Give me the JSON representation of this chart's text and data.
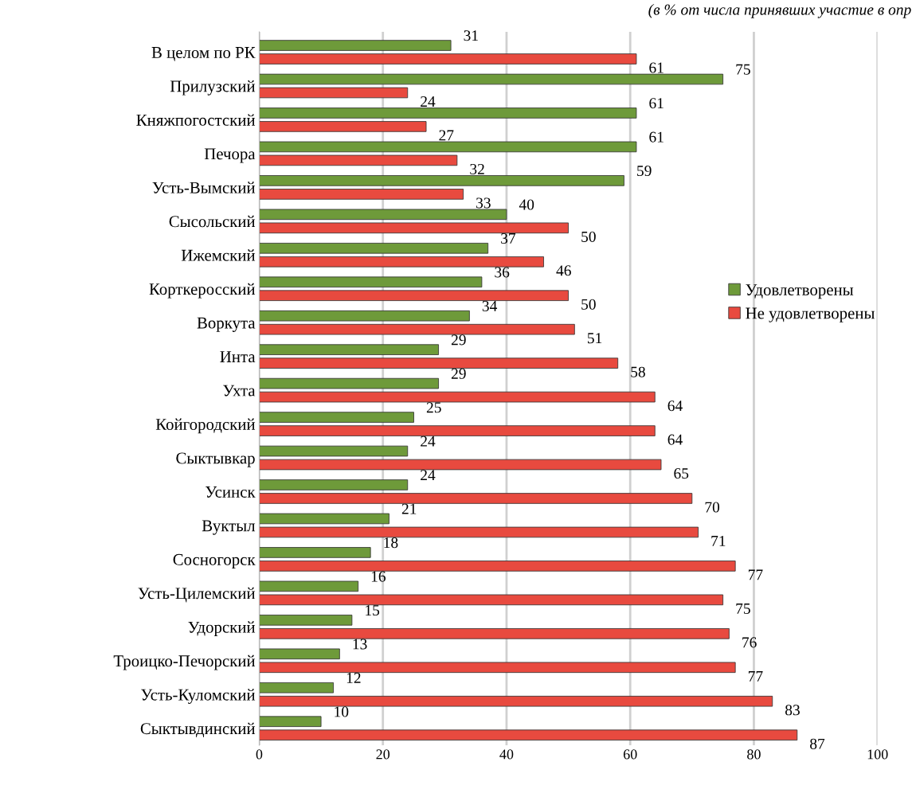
{
  "chart_data": {
    "type": "bar",
    "orientation": "horizontal",
    "annotations": [
      "(в % от числа принявших участие в опр"
    ],
    "categories": [
      "В целом по РК",
      "Прилузский",
      "Княжпогостский",
      "Печора",
      "Усть-Вымский",
      "Сысольский",
      "Ижемский",
      "Корткеросский",
      "Воркута",
      "Инта",
      "Ухта",
      "Койгородский",
      "Сыктывкар",
      "Усинск",
      "Вуктыл",
      "Сосногорск",
      "Усть-Цилемский",
      "Удорский",
      "Троицко-Печорский",
      "Усть-Куломский",
      "Сыктывдинский"
    ],
    "series": [
      {
        "name": "Удовлетворены",
        "color": "#6e9a3a",
        "values": [
          31,
          75,
          61,
          61,
          59,
          40,
          37,
          36,
          34,
          29,
          29,
          25,
          24,
          24,
          21,
          18,
          16,
          15,
          13,
          12,
          10
        ]
      },
      {
        "name": "Не удовлетворены",
        "color": "#e84a3f",
        "values": [
          61,
          24,
          27,
          32,
          33,
          50,
          46,
          50,
          51,
          58,
          64,
          64,
          65,
          70,
          71,
          77,
          75,
          76,
          77,
          83,
          87
        ]
      }
    ],
    "xlim": [
      0,
      100
    ],
    "xticks": [
      0,
      20,
      40,
      60,
      80,
      100
    ],
    "grid": "x",
    "legend": "right",
    "data_labels": true
  }
}
